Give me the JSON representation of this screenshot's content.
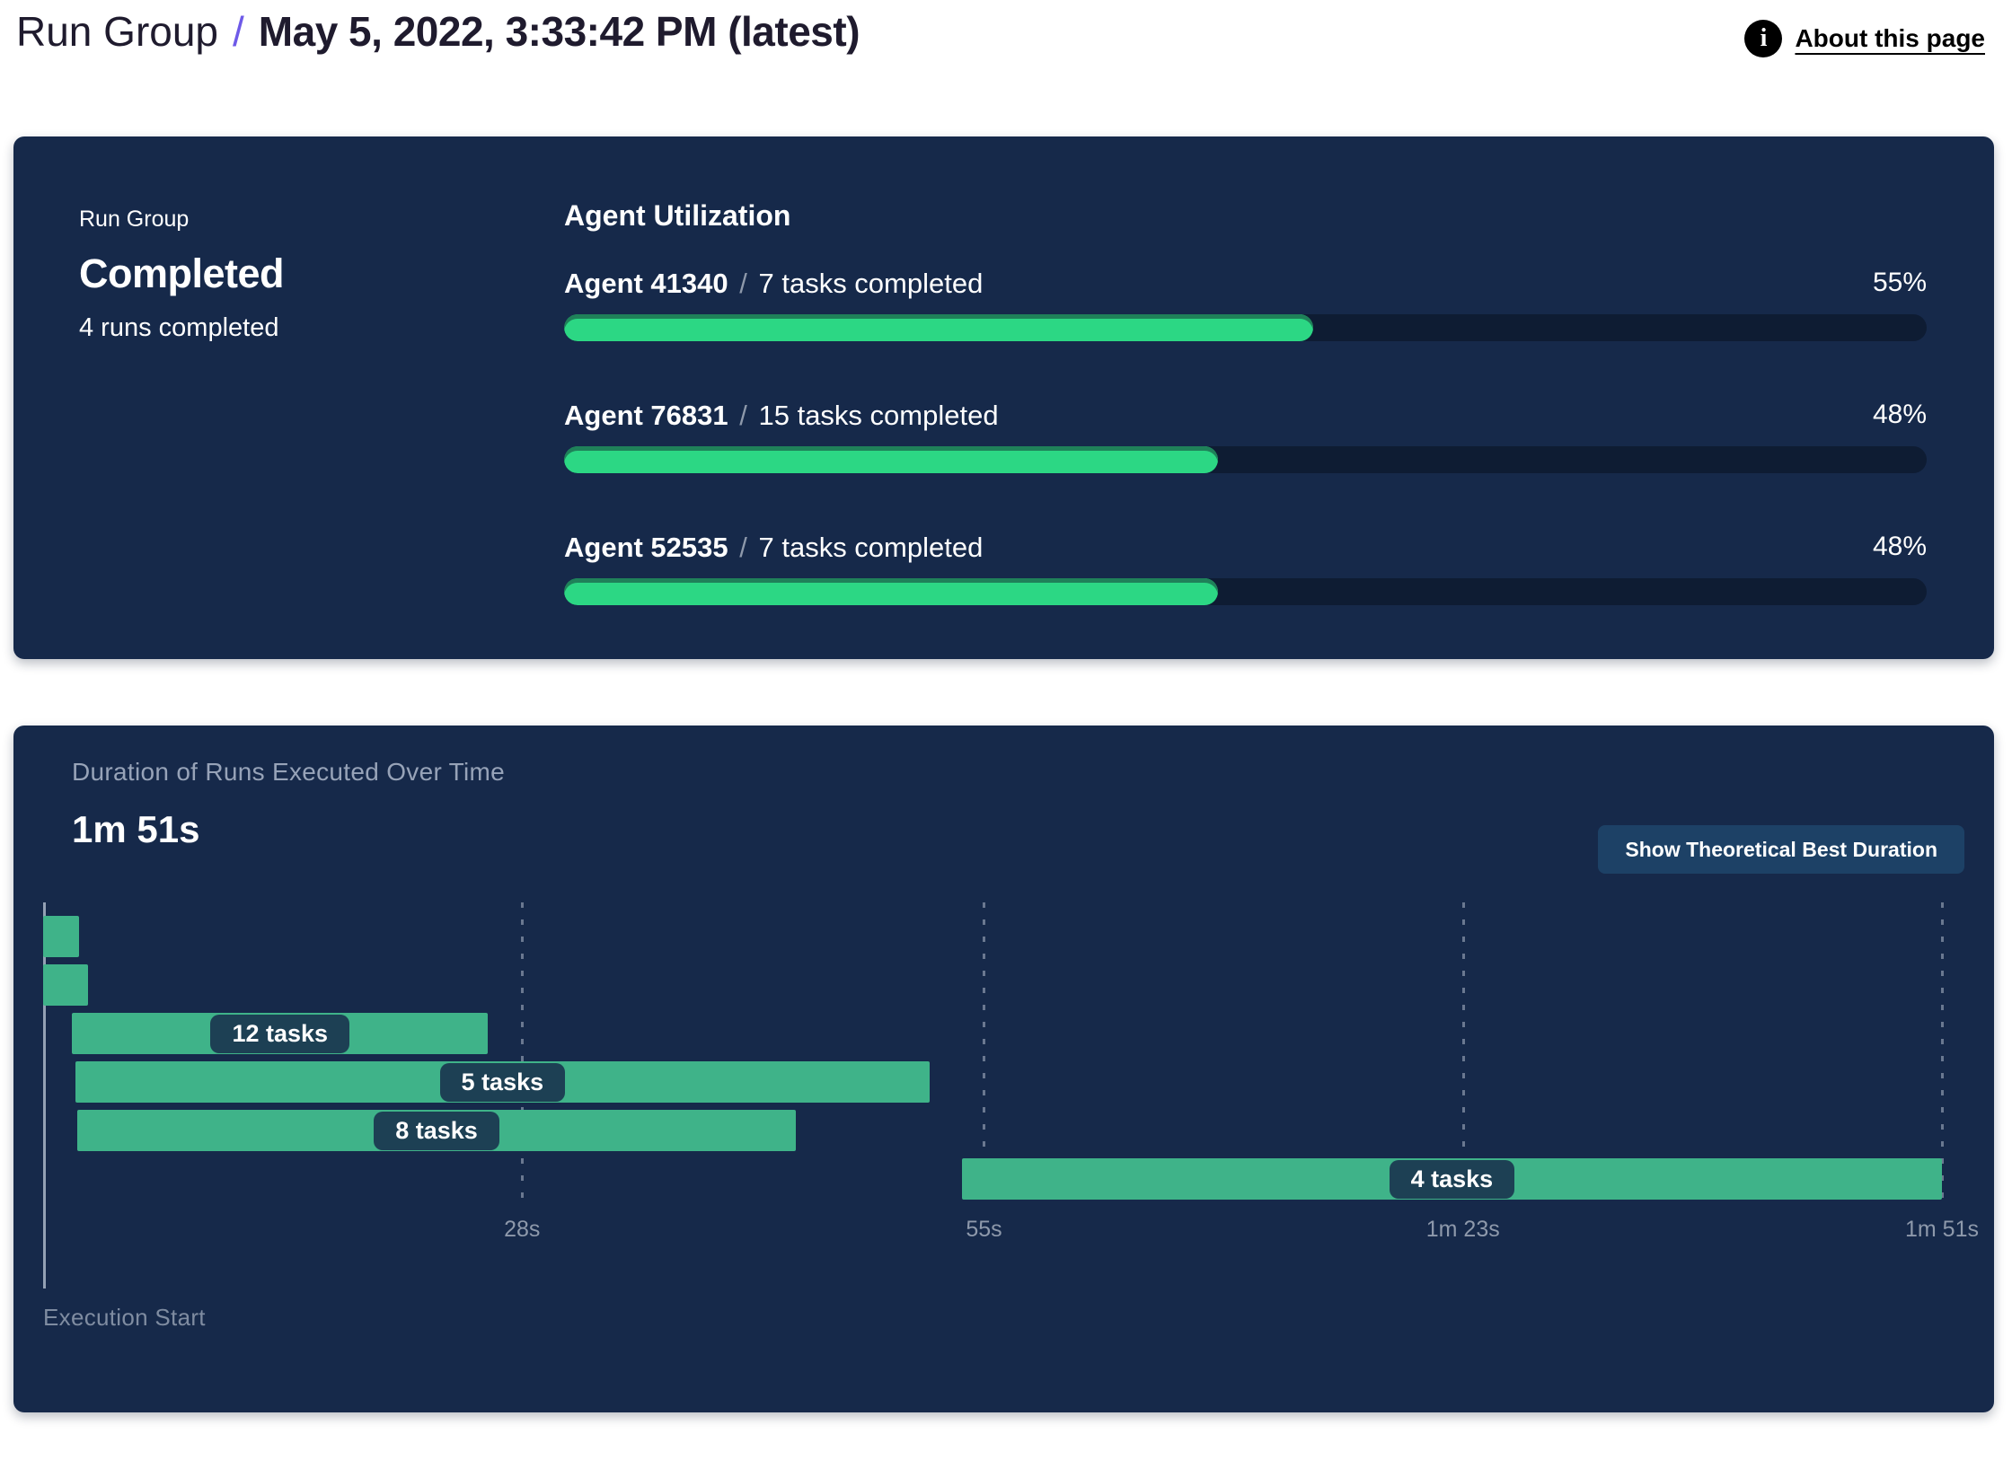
{
  "header": {
    "breadcrumb_root": "Run Group",
    "separator": "/",
    "title": "May 5, 2022, 3:33:42 PM (latest)",
    "about_label": "About this page",
    "info_icon": "i"
  },
  "summary": {
    "label": "Run Group",
    "status": "Completed",
    "runs_completed": "4 runs completed"
  },
  "agent_utilization": {
    "title": "Agent Utilization",
    "agents": [
      {
        "name": "Agent 41340",
        "separator": "/",
        "tasks": "7 tasks completed",
        "percent": 55,
        "percent_label": "55%"
      },
      {
        "name": "Agent 76831",
        "separator": "/",
        "tasks": "15 tasks completed",
        "percent": 48,
        "percent_label": "48%"
      },
      {
        "name": "Agent 52535",
        "separator": "/",
        "tasks": "7 tasks completed",
        "percent": 48,
        "percent_label": "48%"
      }
    ]
  },
  "duration_panel": {
    "subtitle": "Duration of Runs Executed Over Time",
    "total_duration": "1m 51s",
    "button_label": "Show Theoretical Best Duration",
    "execution_start_label": "Execution Start"
  },
  "chart_data": {
    "type": "gantt",
    "title": "Duration of Runs Executed Over Time",
    "total_duration_label": "1m 51s",
    "axis_range_s": [
      0,
      111
    ],
    "x_ticks": [
      {
        "label": "28s",
        "seconds": 28
      },
      {
        "label": "55s",
        "seconds": 55
      },
      {
        "label": "1m 23s",
        "seconds": 83
      },
      {
        "label": "1m 51s",
        "seconds": 111
      }
    ],
    "xlabel": "Execution Start",
    "bars": [
      {
        "row": 0,
        "start_s": 0,
        "end_s": 2.1,
        "label": ""
      },
      {
        "row": 1,
        "start_s": 0,
        "end_s": 2.6,
        "label": ""
      },
      {
        "row": 2,
        "start_s": 1.7,
        "end_s": 26.0,
        "label": "12 tasks"
      },
      {
        "row": 3,
        "start_s": 1.9,
        "end_s": 51.8,
        "label": "5 tasks"
      },
      {
        "row": 4,
        "start_s": 2.0,
        "end_s": 44.0,
        "label": "8 tasks"
      },
      {
        "row": 5,
        "start_s": 53.7,
        "end_s": 111,
        "label": "4 tasks"
      }
    ]
  },
  "colors": {
    "panel_navy": "#16294a",
    "progress_track": "#0e1c33",
    "progress_fill": "#2cd784",
    "progress_fill_edge": "#1f8159",
    "gantt_green": "#3fb389",
    "pill_navy": "#1d4054",
    "button_blue": "#1d4166",
    "accent_purple": "#6e5ae8",
    "muted_text": "#97a3b8"
  }
}
